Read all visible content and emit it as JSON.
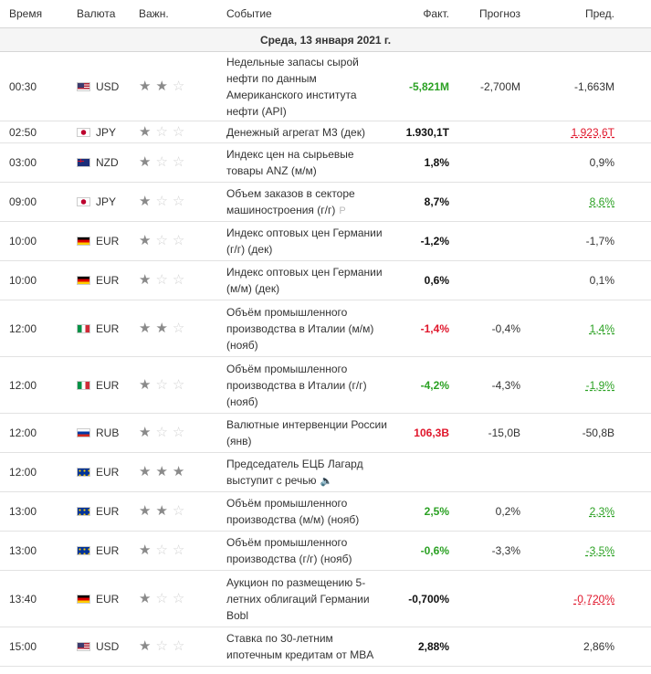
{
  "headers": {
    "time": "Время",
    "currency": "Валюта",
    "importance": "Важн.",
    "event": "Событие",
    "actual": "Факт.",
    "forecast": "Прогноз",
    "previous": "Пред."
  },
  "date_label": "Среда, 13 января 2021 г.",
  "colors": {
    "positive": "#2ba123",
    "negative": "#e0162b"
  },
  "rows": [
    {
      "time": "00:30",
      "flag": "us",
      "currency": "USD",
      "stars": 2,
      "event": "Недельные запасы сырой нефти по данным Американского института нефти (API)",
      "actual": "-5,821M",
      "actual_color": "pos",
      "forecast": "-2,700M",
      "previous": "-1,663M",
      "previous_color": "plain",
      "h": 76
    },
    {
      "time": "02:50",
      "flag": "jp",
      "currency": "JPY",
      "stars": 1,
      "event": "Денежный агрегат М3 (дек)",
      "actual": "1.930,1T",
      "actual_color": "black",
      "forecast": "",
      "previous": "1.923,6T",
      "previous_color": "neg",
      "h": 24
    },
    {
      "time": "03:00",
      "flag": "nz",
      "currency": "NZD",
      "stars": 1,
      "event": "Индекс цен на сырьевые товары ANZ (м/м)",
      "actual": "1,8%",
      "actual_color": "black",
      "forecast": "",
      "previous": "0,9%",
      "previous_color": "plain",
      "h": 43
    },
    {
      "time": "09:00",
      "flag": "jp",
      "currency": "JPY",
      "stars": 1,
      "event": "Объем заказов в секторе машиностроения (г/г)",
      "badge": "P",
      "actual": "8,7%",
      "actual_color": "black",
      "forecast": "",
      "previous": "8,6%",
      "previous_color": "pos",
      "h": 43
    },
    {
      "time": "10:00",
      "flag": "de",
      "currency": "EUR",
      "stars": 1,
      "event": "Индекс оптовых цен Германии (г/г) (дек)",
      "actual": "-1,2%",
      "actual_color": "black",
      "forecast": "",
      "previous": "-1,7%",
      "previous_color": "plain",
      "h": 43
    },
    {
      "time": "10:00",
      "flag": "de",
      "currency": "EUR",
      "stars": 1,
      "event": "Индекс оптовых цен Германии (м/м) (дек)",
      "actual": "0,6%",
      "actual_color": "black",
      "forecast": "",
      "previous": "0,1%",
      "previous_color": "plain",
      "h": 43
    },
    {
      "time": "12:00",
      "flag": "it",
      "currency": "EUR",
      "stars": 2,
      "event": "Объём промышленного производства в Италии (м/м) (нояб)",
      "actual": "-1,4%",
      "actual_color": "neg",
      "forecast": "-0,4%",
      "previous": "1,4%",
      "previous_color": "pos",
      "h": 62
    },
    {
      "time": "12:00",
      "flag": "it",
      "currency": "EUR",
      "stars": 1,
      "event": "Объём промышленного производства в Италии (г/г) (нояб)",
      "actual": "-4,2%",
      "actual_color": "pos",
      "forecast": "-4,3%",
      "previous": "-1,9%",
      "previous_color": "pos",
      "h": 62
    },
    {
      "time": "12:00",
      "flag": "ru",
      "currency": "RUB",
      "stars": 1,
      "event": "Валютные интервенции России (янв)",
      "actual": "106,3B",
      "actual_color": "neg",
      "forecast": "-15,0B",
      "previous": "-50,8B",
      "previous_color": "plain",
      "h": 43
    },
    {
      "time": "12:00",
      "flag": "eu",
      "currency": "EUR",
      "stars": 3,
      "event": "Председатель ЕЦБ Лагард выступит с речью",
      "speaker": true,
      "actual": "",
      "actual_color": "black",
      "forecast": "",
      "previous": "",
      "previous_color": "plain",
      "h": 43
    },
    {
      "time": "13:00",
      "flag": "eu",
      "currency": "EUR",
      "stars": 2,
      "event": "Объём промышленного производства (м/м) (нояб)",
      "actual": "2,5%",
      "actual_color": "pos",
      "forecast": "0,2%",
      "previous": "2,3%",
      "previous_color": "pos",
      "h": 43
    },
    {
      "time": "13:00",
      "flag": "eu",
      "currency": "EUR",
      "stars": 1,
      "event": "Объём промышленного производства (г/г) (нояб)",
      "actual": "-0,6%",
      "actual_color": "pos",
      "forecast": "-3,3%",
      "previous": "-3,5%",
      "previous_color": "pos",
      "h": 43
    },
    {
      "time": "13:40",
      "flag": "de",
      "currency": "EUR",
      "stars": 1,
      "event": "Аукцион по размещению 5-летних облигаций Германии Bobl",
      "actual": "-0,700%",
      "actual_color": "black",
      "forecast": "",
      "previous": "-0,720%",
      "previous_color": "neg",
      "h": 62
    },
    {
      "time": "15:00",
      "flag": "us",
      "currency": "USD",
      "stars": 1,
      "event": "Ставка по 30-летним ипотечным кредитам от MBA",
      "actual": "2,88%",
      "actual_color": "black",
      "forecast": "",
      "previous": "2,86%",
      "previous_color": "plain",
      "h": 43
    }
  ]
}
